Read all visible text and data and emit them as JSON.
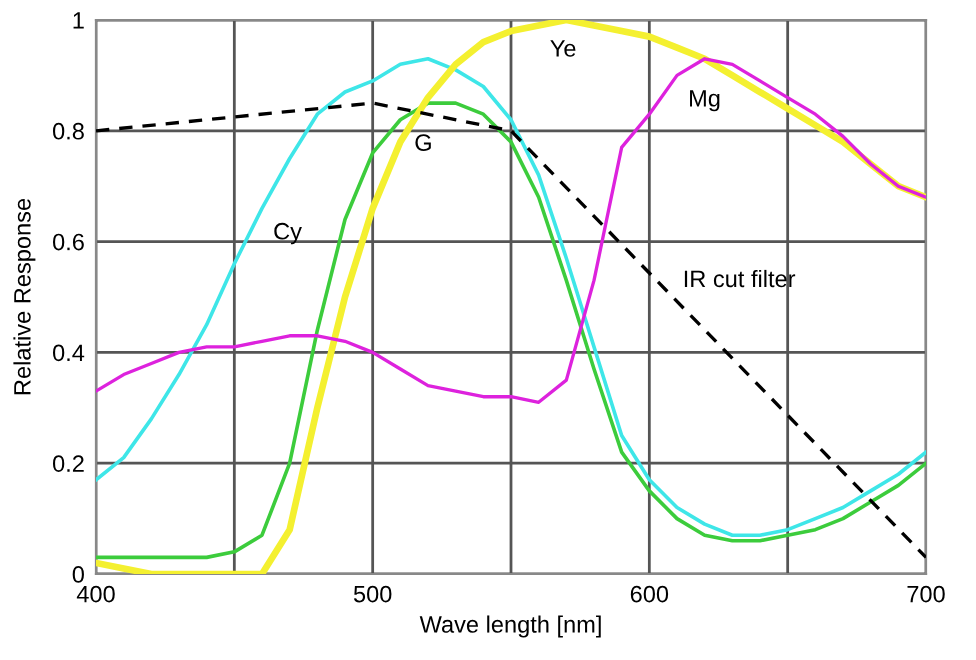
{
  "chart_data": {
    "type": "line",
    "xlabel": "Wave length [nm]",
    "ylabel": "Relative Response",
    "x": [
      400,
      410,
      420,
      430,
      440,
      450,
      460,
      470,
      480,
      490,
      500,
      510,
      520,
      530,
      540,
      550,
      560,
      570,
      580,
      590,
      600,
      610,
      620,
      630,
      640,
      650,
      660,
      670,
      680,
      690,
      700
    ],
    "series": [
      {
        "color": "#3ee6e8",
        "values": [
          0.17,
          0.21,
          0.28,
          0.36,
          0.45,
          0.56,
          0.66,
          0.75,
          0.83,
          0.87,
          0.89,
          0.92,
          0.93,
          0.91,
          0.88,
          0.82,
          0.72,
          0.57,
          0.41,
          0.25,
          0.17,
          0.12,
          0.09,
          0.07,
          0.07,
          0.08,
          0.1,
          0.12,
          0.15,
          0.18,
          0.22
        ]
      },
      {
        "color": "#3ccc3c",
        "values": [
          0.03,
          0.03,
          0.03,
          0.03,
          0.03,
          0.04,
          0.07,
          0.2,
          0.44,
          0.64,
          0.76,
          0.82,
          0.85,
          0.85,
          0.83,
          0.78,
          0.68,
          0.53,
          0.37,
          0.22,
          0.15,
          0.1,
          0.07,
          0.06,
          0.06,
          0.07,
          0.08,
          0.1,
          0.13,
          0.16,
          0.2
        ]
      },
      {
        "color": "#f4f030",
        "values": [
          0.02,
          0.01,
          0,
          0,
          0,
          0,
          0,
          0.08,
          0.3,
          0.5,
          0.66,
          0.78,
          0.86,
          0.92,
          0.96,
          0.98,
          0.99,
          1.0,
          0.99,
          0.98,
          0.97,
          0.95,
          0.93,
          0.9,
          0.87,
          0.84,
          0.81,
          0.78,
          0.74,
          0.7,
          0.68
        ]
      },
      {
        "color": "#dd22dd",
        "values": [
          0.33,
          0.36,
          0.38,
          0.4,
          0.41,
          0.41,
          0.42,
          0.43,
          0.43,
          0.42,
          0.4,
          0.37,
          0.34,
          0.33,
          0.32,
          0.32,
          0.31,
          0.35,
          0.53,
          0.77,
          0.83,
          0.9,
          0.93,
          0.92,
          0.89,
          0.86,
          0.83,
          0.79,
          0.74,
          0.7,
          0.68
        ]
      },
      {
        "color": "#000000",
        "line_style": "dashed",
        "x": [
          400,
          500,
          550,
          700
        ],
        "values": [
          0.8,
          0.85,
          0.8,
          0.03
        ]
      }
    ],
    "annotations": [
      {
        "text": "Cy",
        "x": 460,
        "y": 0.66
      },
      {
        "text": "G",
        "x": 510,
        "y": 0.82
      },
      {
        "text": "Ye",
        "x": 560,
        "y": 0.99
      },
      {
        "text": "Mg",
        "x": 610,
        "y": 0.9
      },
      {
        "text": "IR cut filter",
        "x": 595,
        "y": 0.569
      }
    ],
    "xlim": [
      400,
      700
    ],
    "ylim": [
      0,
      1
    ],
    "xticks": [
      400,
      {
        "value": 450,
        "label": null
      },
      500,
      {
        "value": 550,
        "label": null
      },
      600,
      {
        "value": 650,
        "label": null
      },
      700
    ],
    "yticks": [
      0,
      0.2,
      0.4,
      0.6,
      0.8,
      1
    ],
    "grid": true,
    "legend": false
  }
}
